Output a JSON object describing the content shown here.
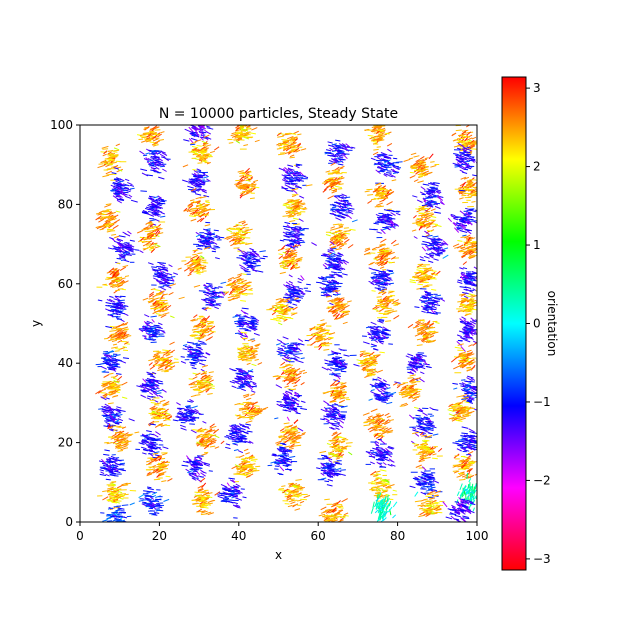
{
  "chart_data": {
    "type": "scatter",
    "title": "N = 10000 particles, Steady State",
    "xlabel": "x",
    "ylabel": "y",
    "xlim": [
      0,
      100
    ],
    "ylim": [
      0,
      100
    ],
    "x_ticks": [
      "0",
      "20",
      "40",
      "60",
      "80",
      "100"
    ],
    "y_ticks": [
      "0",
      "20",
      "40",
      "60",
      "80",
      "100"
    ],
    "colorbar": {
      "label": "orientation",
      "range": [
        -3.14159,
        3.14159
      ],
      "ticks": [
        "−3",
        "−2",
        "−1",
        "0",
        "1",
        "2",
        "3"
      ],
      "colormap": "hsv"
    },
    "grid": false,
    "legend": "none",
    "clusters": [
      {
        "x": 8,
        "y": 91,
        "o": 2.4
      },
      {
        "x": 10,
        "y": 84,
        "o": -1.2
      },
      {
        "x": 7,
        "y": 76,
        "o": 2.5
      },
      {
        "x": 11,
        "y": 69,
        "o": -1.2
      },
      {
        "x": 9,
        "y": 61,
        "o": 2.5
      },
      {
        "x": 9,
        "y": 54,
        "o": -1.1
      },
      {
        "x": 10,
        "y": 47,
        "o": 2.5
      },
      {
        "x": 8,
        "y": 40,
        "o": -1.0
      },
      {
        "x": 8,
        "y": 34,
        "o": 2.4
      },
      {
        "x": 8,
        "y": 27,
        "o": -1.1
      },
      {
        "x": 10,
        "y": 21,
        "o": 2.5
      },
      {
        "x": 8,
        "y": 14,
        "o": -1.1
      },
      {
        "x": 9,
        "y": 7,
        "o": 2.3
      },
      {
        "x": 9,
        "y": 1,
        "o": -0.8
      },
      {
        "x": 18,
        "y": 98,
        "o": 2.5
      },
      {
        "x": 19,
        "y": 91,
        "o": -1.1
      },
      {
        "x": 19,
        "y": 79,
        "o": -1.2
      },
      {
        "x": 18,
        "y": 72,
        "o": 2.5
      },
      {
        "x": 21,
        "y": 62,
        "o": -1.2
      },
      {
        "x": 20,
        "y": 55,
        "o": 2.5
      },
      {
        "x": 18,
        "y": 48,
        "o": -1.1
      },
      {
        "x": 21,
        "y": 41,
        "o": 2.5
      },
      {
        "x": 18,
        "y": 34,
        "o": -1.2
      },
      {
        "x": 20,
        "y": 27,
        "o": 2.4
      },
      {
        "x": 18,
        "y": 20,
        "o": -1.1
      },
      {
        "x": 20,
        "y": 14,
        "o": 2.5
      },
      {
        "x": 18,
        "y": 5,
        "o": -1.0
      },
      {
        "x": 30,
        "y": 99,
        "o": -1.3
      },
      {
        "x": 31,
        "y": 93,
        "o": 2.4
      },
      {
        "x": 30,
        "y": 86,
        "o": -1.2
      },
      {
        "x": 30,
        "y": 79,
        "o": 2.5
      },
      {
        "x": 32,
        "y": 71,
        "o": -1.1
      },
      {
        "x": 29,
        "y": 65,
        "o": 2.5
      },
      {
        "x": 33,
        "y": 57,
        "o": -1.2
      },
      {
        "x": 31,
        "y": 49,
        "o": 2.5
      },
      {
        "x": 29,
        "y": 42,
        "o": -1.1
      },
      {
        "x": 31,
        "y": 35,
        "o": 2.4
      },
      {
        "x": 27,
        "y": 27,
        "o": -1.1
      },
      {
        "x": 32,
        "y": 21,
        "o": 2.5
      },
      {
        "x": 29,
        "y": 14,
        "o": -1.2
      },
      {
        "x": 31,
        "y": 6,
        "o": 2.4
      },
      {
        "x": 41,
        "y": 98,
        "o": 2.3
      },
      {
        "x": 42,
        "y": 85,
        "o": 2.5
      },
      {
        "x": 40,
        "y": 72,
        "o": 2.4
      },
      {
        "x": 43,
        "y": 66,
        "o": -1.1
      },
      {
        "x": 40,
        "y": 59,
        "o": 2.5
      },
      {
        "x": 42,
        "y": 50,
        "o": -1.1
      },
      {
        "x": 42,
        "y": 43,
        "o": 2.4
      },
      {
        "x": 41,
        "y": 36,
        "o": -1.2
      },
      {
        "x": 43,
        "y": 28,
        "o": 2.5
      },
      {
        "x": 40,
        "y": 22,
        "o": -1.1
      },
      {
        "x": 42,
        "y": 14,
        "o": 2.4
      },
      {
        "x": 38,
        "y": 7,
        "o": -1.2
      },
      {
        "x": 53,
        "y": 95,
        "o": 2.5
      },
      {
        "x": 54,
        "y": 87,
        "o": -1.2
      },
      {
        "x": 54,
        "y": 79,
        "o": 2.4
      },
      {
        "x": 54,
        "y": 72,
        "o": -1.2
      },
      {
        "x": 53,
        "y": 66,
        "o": 2.5
      },
      {
        "x": 54,
        "y": 58,
        "o": -1.1
      },
      {
        "x": 51,
        "y": 53,
        "o": 2.4
      },
      {
        "x": 53,
        "y": 43,
        "o": -1.1
      },
      {
        "x": 53,
        "y": 37,
        "o": 2.5
      },
      {
        "x": 53,
        "y": 30,
        "o": -1.2
      },
      {
        "x": 53,
        "y": 22,
        "o": 2.5
      },
      {
        "x": 51,
        "y": 16,
        "o": -1.1
      },
      {
        "x": 54,
        "y": 7,
        "o": 2.4
      },
      {
        "x": 65,
        "y": 93,
        "o": -1.1
      },
      {
        "x": 64,
        "y": 86,
        "o": 2.5
      },
      {
        "x": 66,
        "y": 79,
        "o": -1.1
      },
      {
        "x": 65,
        "y": 72,
        "o": 2.5
      },
      {
        "x": 64,
        "y": 65,
        "o": -1.2
      },
      {
        "x": 63,
        "y": 59,
        "o": -1.1
      },
      {
        "x": 65,
        "y": 54,
        "o": 2.5
      },
      {
        "x": 61,
        "y": 47,
        "o": 2.4
      },
      {
        "x": 65,
        "y": 40,
        "o": -1.1
      },
      {
        "x": 65,
        "y": 33,
        "o": 2.5
      },
      {
        "x": 64,
        "y": 27,
        "o": -1.2
      },
      {
        "x": 65,
        "y": 19,
        "o": 2.4
      },
      {
        "x": 63,
        "y": 13,
        "o": -1.1
      },
      {
        "x": 64,
        "y": 2,
        "o": 2.5
      },
      {
        "x": 75,
        "y": 98,
        "o": 2.4
      },
      {
        "x": 77,
        "y": 90,
        "o": -1.1
      },
      {
        "x": 76,
        "y": 83,
        "o": 2.5
      },
      {
        "x": 77,
        "y": 76,
        "o": -1.2
      },
      {
        "x": 76,
        "y": 67,
        "o": 2.5
      },
      {
        "x": 76,
        "y": 61,
        "o": -1.1
      },
      {
        "x": 77,
        "y": 55,
        "o": 2.5
      },
      {
        "x": 75,
        "y": 47,
        "o": -1.2
      },
      {
        "x": 73,
        "y": 40,
        "o": 2.4
      },
      {
        "x": 76,
        "y": 33,
        "o": -1.1
      },
      {
        "x": 75,
        "y": 25,
        "o": 2.5
      },
      {
        "x": 76,
        "y": 17,
        "o": -1.2
      },
      {
        "x": 76,
        "y": 9,
        "o": 2.3
      },
      {
        "x": 76,
        "y": 3,
        "o": 0.2
      },
      {
        "x": 86,
        "y": 89,
        "o": 2.5
      },
      {
        "x": 88,
        "y": 82,
        "o": -1.2
      },
      {
        "x": 87,
        "y": 76,
        "o": 2.5
      },
      {
        "x": 89,
        "y": 69,
        "o": -1.2
      },
      {
        "x": 87,
        "y": 62,
        "o": 2.4
      },
      {
        "x": 88,
        "y": 55,
        "o": -1.1
      },
      {
        "x": 87,
        "y": 48,
        "o": 2.5
      },
      {
        "x": 85,
        "y": 40,
        "o": -1.2
      },
      {
        "x": 83,
        "y": 33,
        "o": 2.5
      },
      {
        "x": 87,
        "y": 25,
        "o": -1.1
      },
      {
        "x": 87,
        "y": 18,
        "o": 2.4
      },
      {
        "x": 87,
        "y": 10,
        "o": -1.0
      },
      {
        "x": 88,
        "y": 4,
        "o": 2.3
      },
      {
        "x": 97,
        "y": 96,
        "o": 2.5
      },
      {
        "x": 97,
        "y": 91,
        "o": -1.2
      },
      {
        "x": 98,
        "y": 84,
        "o": 2.5
      },
      {
        "x": 97,
        "y": 76,
        "o": -1.2
      },
      {
        "x": 98,
        "y": 69,
        "o": 2.5
      },
      {
        "x": 98,
        "y": 61,
        "o": -1.1
      },
      {
        "x": 98,
        "y": 55,
        "o": 2.4
      },
      {
        "x": 98,
        "y": 48,
        "o": -1.2
      },
      {
        "x": 97,
        "y": 41,
        "o": 2.5
      },
      {
        "x": 98,
        "y": 33,
        "o": -1.1
      },
      {
        "x": 96,
        "y": 28,
        "o": 2.4
      },
      {
        "x": 98,
        "y": 20,
        "o": -1.2
      },
      {
        "x": 97,
        "y": 14,
        "o": 2.5
      },
      {
        "x": 98,
        "y": 7,
        "o": 0.3
      },
      {
        "x": 96,
        "y": 3,
        "o": -1.3
      }
    ]
  }
}
